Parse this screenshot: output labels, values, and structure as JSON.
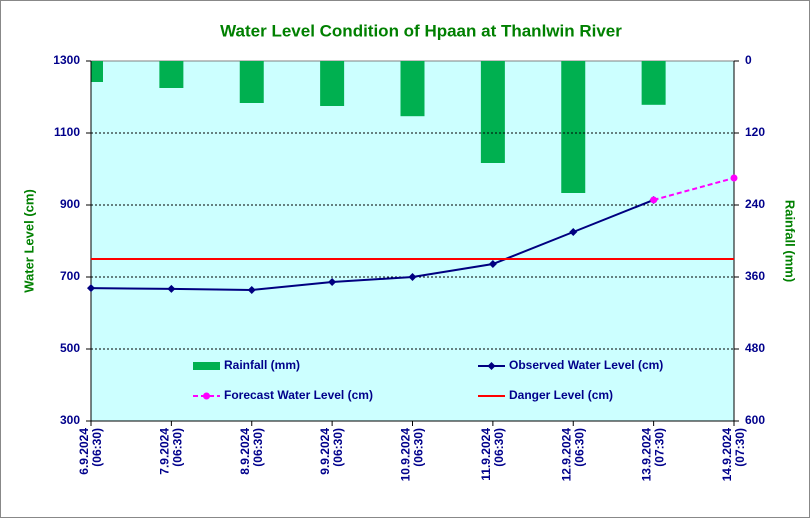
{
  "chart_data": {
    "type": "combo",
    "title": "Water Level Condition of Hpaan at Thanlwin River",
    "y_label": "Water Level (cm)",
    "y2_label": "Rainfall (mm)",
    "categories": [
      [
        "6.9.2024",
        "(06:30)"
      ],
      [
        "7.9.2024",
        "(06:30)"
      ],
      [
        "8.9.2024",
        "(06:30)"
      ],
      [
        "9.9.2024",
        "(06:30)"
      ],
      [
        "10.9.2024",
        "(06:30)"
      ],
      [
        "11.9.2024",
        "(06:30)"
      ],
      [
        "12.9.2024",
        "(06:30)"
      ],
      [
        "13.9.2024",
        "(07:30)"
      ],
      [
        "14.9.2024",
        "(07:30)"
      ]
    ],
    "ylim": [
      300,
      1300
    ],
    "yticks": [
      300,
      500,
      700,
      900,
      1100,
      1300
    ],
    "y2lim": [
      0,
      600
    ],
    "y2_inverted": true,
    "y2ticks": [
      0,
      120,
      240,
      360,
      480,
      600
    ],
    "grid": true,
    "series": [
      {
        "name": "Rainfall (mm)",
        "type": "bar",
        "axis": "y2",
        "color": "#00b050",
        "values": [
          35,
          45,
          70,
          75,
          92,
          170,
          220,
          73,
          null
        ]
      },
      {
        "name": "Observed Water Level (cm)",
        "type": "line",
        "color": "#000080",
        "marker": "diamond",
        "values": [
          669,
          667,
          664,
          686,
          700,
          736,
          825,
          914,
          null
        ]
      },
      {
        "name": "Forecast Water Level (cm)",
        "type": "line",
        "color": "#ff00ff",
        "marker": "circle",
        "dashed": true,
        "values": [
          null,
          null,
          null,
          null,
          null,
          null,
          null,
          914,
          975
        ]
      },
      {
        "name": "Danger Level (cm)",
        "type": "hline",
        "color": "#ff0000",
        "value": 750
      }
    ]
  }
}
